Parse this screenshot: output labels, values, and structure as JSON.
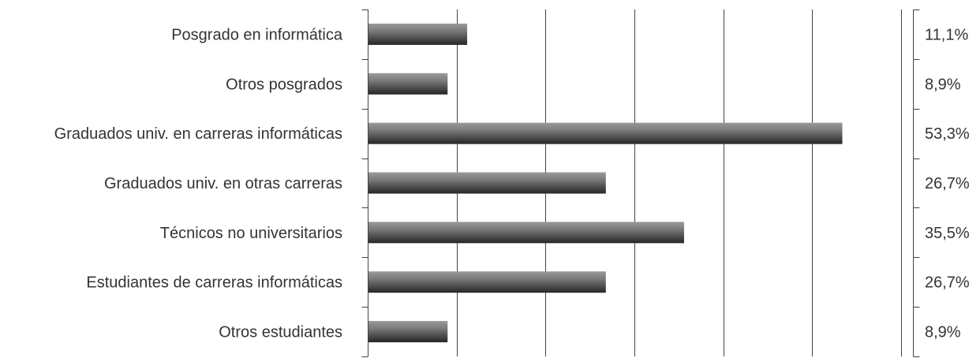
{
  "chart_data": {
    "type": "bar",
    "orientation": "horizontal",
    "categories": [
      "Posgrado en informática",
      "Otros posgrados",
      "Graduados univ. en carreras informáticas",
      "Graduados univ. en otras carreras",
      "Técnicos no universitarios",
      "Estudiantes de carreras informáticas",
      "Otros estudiantes"
    ],
    "values": [
      11.1,
      8.9,
      53.3,
      26.7,
      35.5,
      26.7,
      8.9
    ],
    "value_labels": [
      "11,1%",
      "8,9%",
      "53,3%",
      "26,7%",
      "35,5%",
      "26,7%",
      "8,9%"
    ],
    "xlim": [
      0,
      60
    ],
    "grid": true,
    "colors": {
      "bar_light": "#a8a8a8",
      "bar_mid": "#6e6e6e",
      "bar_dark": "#2a2a2a",
      "text": "#333333",
      "axis": "#444444"
    }
  }
}
